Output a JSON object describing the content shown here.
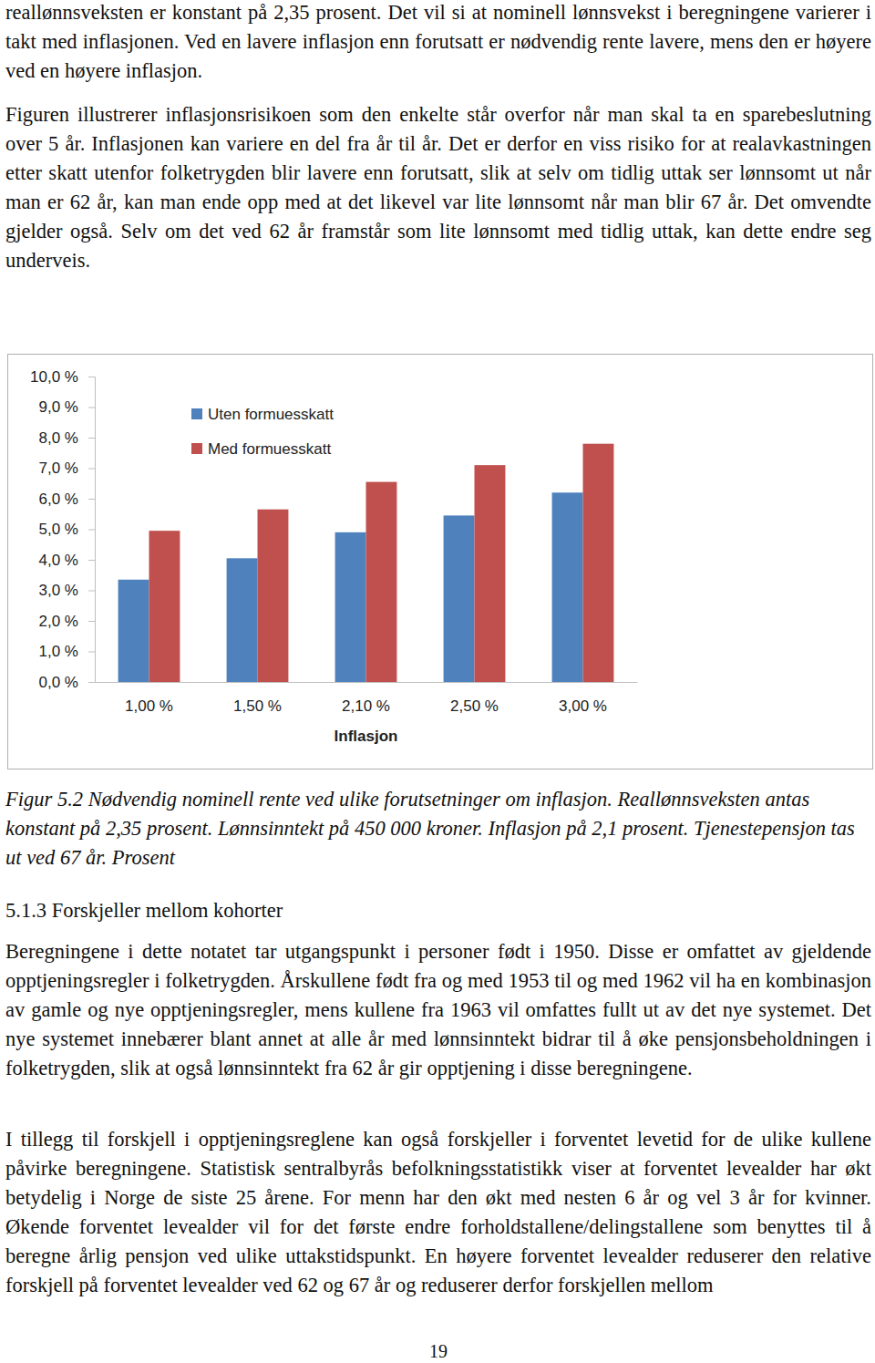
{
  "paragraphs_top": [
    "reallønnsveksten er konstant på 2,35 prosent. Det vil si at nominell lønnsvekst i beregningene varierer i takt med inflasjonen. Ved en lavere inflasjon enn forutsatt er nødvendig rente lavere, mens den er høyere ved en høyere inflasjon.",
    "Figuren illustrerer inflasjonsrisikoen som den enkelte står overfor når man skal ta en sparebeslutning over 5 år. Inflasjonen kan variere en del fra år til år. Det er derfor en viss risiko for at realavkastningen etter skatt utenfor folketrygden blir lavere enn forutsatt, slik at selv om tidlig uttak ser lønnsomt ut når man er 62 år, kan man ende opp med at det likevel var lite lønnsomt når man blir 67 år. Det omvendte gjelder også. Selv om det ved 62 år framstår som lite lønnsomt med tidlig uttak, kan dette endre seg underveis."
  ],
  "chart_data": {
    "type": "bar",
    "xlabel": "Inflasjon",
    "categories": [
      "1,00 %",
      "1,50 %",
      "2,10 %",
      "2,50 %",
      "3,00 %"
    ],
    "series": [
      {
        "name": "Uten formuesskatt",
        "color": "#4f81bd",
        "values": [
          3.35,
          4.05,
          4.9,
          5.45,
          6.2
        ]
      },
      {
        "name": "Med formuesskatt",
        "color": "#c0504d",
        "values": [
          4.95,
          5.65,
          6.55,
          7.1,
          7.8
        ]
      }
    ],
    "ylim": [
      0,
      10
    ],
    "yticks": [
      {
        "value": 0,
        "label": "0,0 %"
      },
      {
        "value": 1,
        "label": "1,0 %"
      },
      {
        "value": 2,
        "label": "2,0 %"
      },
      {
        "value": 3,
        "label": "3,0 %"
      },
      {
        "value": 4,
        "label": "4,0 %"
      },
      {
        "value": 5,
        "label": "5,0 %"
      },
      {
        "value": 6,
        "label": "6,0 %"
      },
      {
        "value": 7,
        "label": "7,0 %"
      },
      {
        "value": 8,
        "label": "8,0 %"
      },
      {
        "value": 9,
        "label": "9,0 %"
      },
      {
        "value": 10,
        "label": "10,0 %"
      }
    ],
    "grid": false,
    "legend": "top-left"
  },
  "caption": "Figur 5.2 Nødvendig nominell rente ved ulike forutsetninger om inflasjon. Reallønnsveksten antas konstant på 2,35 prosent. Lønnsinntekt på 450 000 kroner. Inflasjon på 2,1 prosent. Tjenestepensjon tas ut ved 67 år. Prosent",
  "section_heading": "5.1.3 Forskjeller mellom kohorter",
  "paragraphs_bottom": [
    "Beregningene i dette notatet tar utgangspunkt i personer født i 1950. Disse er omfattet av gjeldende opptjeningsregler i folketrygden. Årskullene født fra og med 1953 til og med 1962 vil ha en kombinasjon av gamle og nye opptjeningsregler, mens kullene fra 1963 vil omfattes fullt ut av det nye systemet. Det nye systemet innebærer blant annet at alle år med lønnsinntekt bidrar til å øke pensjonsbeholdningen i folketrygden, slik at også lønnsinntekt fra 62 år gir opptjening i disse beregningene.",
    "I tillegg til forskjell i opptjeningsreglene kan også forskjeller i forventet levetid for de ulike kullene påvirke beregningene. Statistisk sentralbyrås befolkningsstatistikk viser at forventet levealder har økt betydelig i Norge de siste 25 årene. For menn har den økt med nesten 6 år og vel 3 år for kvinner. Økende forventet levealder vil for det første endre forholdstallene/delingstallene som benyttes til å beregne årlig pensjon ved ulike uttakstidspunkt. En høyere forventet levealder reduserer den relative forskjell på forventet levealder ved 62 og 67 år og reduserer derfor forskjellen mellom"
  ],
  "page_number": "19"
}
